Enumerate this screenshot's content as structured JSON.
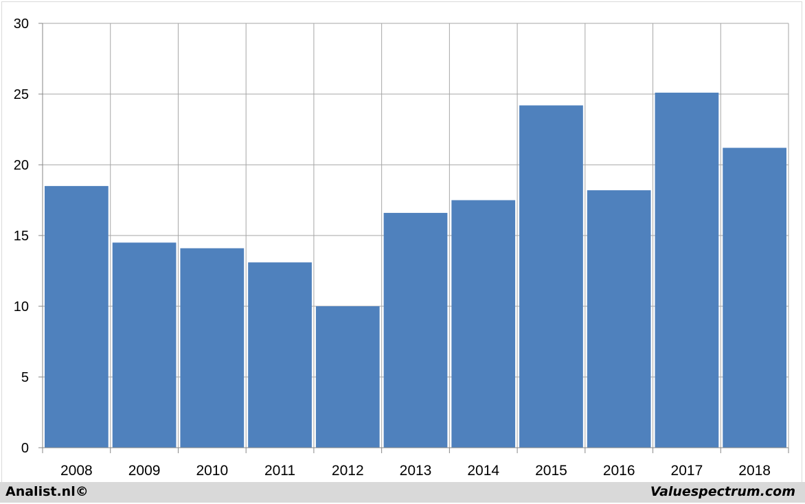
{
  "chart_data": {
    "type": "bar",
    "categories": [
      "2008",
      "2009",
      "2010",
      "2011",
      "2012",
      "2013",
      "2014",
      "2015",
      "2016",
      "2017",
      "2018"
    ],
    "values": [
      18.5,
      14.5,
      14.1,
      13.1,
      10.0,
      16.6,
      17.5,
      24.2,
      18.2,
      25.1,
      21.2
    ],
    "title": "",
    "xlabel": "",
    "ylabel": "",
    "ylim": [
      0,
      30
    ],
    "yticks": [
      "0",
      "5",
      "10",
      "15",
      "20",
      "25",
      "30"
    ],
    "grid": true,
    "bar_color": "#4f81bd",
    "grid_color": "#a6a6a6"
  },
  "footer": {
    "left_text": "Analist.nl©",
    "right_text": "Valuespectrum.com",
    "background": "#d9d9d9"
  }
}
